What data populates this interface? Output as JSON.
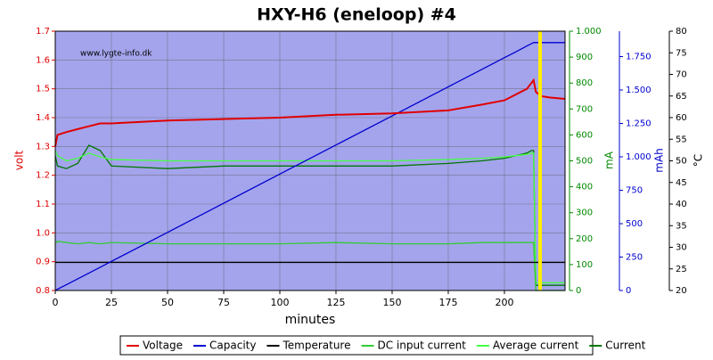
{
  "chart_data": {
    "type": "line",
    "title": "HXY-H6 (eneloop) #4",
    "watermark": "www.lygte-info.dk",
    "x_label": "minutes",
    "y_label": "volt",
    "y2_label": "mA",
    "y3_label": "mAh",
    "y4_label": "°C",
    "grid": true,
    "x": [
      0,
      1,
      5,
      10,
      15,
      20,
      25,
      50,
      75,
      100,
      125,
      150,
      175,
      190,
      200,
      205,
      210,
      212,
      213,
      214,
      216,
      220,
      227
    ],
    "xlim": [
      0,
      227
    ],
    "xticks": [
      0,
      25,
      50,
      75,
      100,
      125,
      150,
      175,
      200
    ],
    "ylim": [
      0.8,
      1.7
    ],
    "yticks": [
      {
        "value": 0.8,
        "label": "0.8"
      },
      0.9,
      {
        "value": 1,
        "label": "1.0"
      },
      1.1,
      1.2,
      1.3,
      1.4,
      1.5,
      1.6,
      1.7
    ],
    "y2lim": [
      0,
      1000
    ],
    "y2ticks": [
      0,
      100,
      200,
      300,
      400,
      500,
      600,
      700,
      800,
      900,
      {
        "value": 1000,
        "label": "1.000"
      }
    ],
    "y3lim": [
      0,
      1940
    ],
    "y3ticks": [
      0,
      250,
      500,
      750,
      {
        "value": 1000,
        "label": "1.000"
      },
      {
        "value": 1250,
        "label": "1.250"
      },
      {
        "value": 1500,
        "label": "1.500"
      },
      {
        "value": 1750,
        "label": "1.750"
      }
    ],
    "y4lim": [
      20,
      80
    ],
    "y4ticks": [
      20,
      25,
      30,
      35,
      40,
      45,
      50,
      55,
      60,
      65,
      70,
      75,
      80
    ],
    "series": [
      {
        "name": "Voltage",
        "color": "#e00000",
        "axis": "y",
        "values": [
          1.3,
          1.34,
          1.35,
          1.36,
          1.37,
          1.38,
          1.38,
          1.39,
          1.395,
          1.4,
          1.41,
          1.415,
          1.425,
          1.445,
          1.46,
          1.48,
          1.5,
          1.52,
          1.53,
          1.49,
          1.475,
          1.47,
          1.465
        ]
      },
      {
        "name": "Capacity",
        "color": "#0000d0",
        "axis": "y3",
        "values": [
          0,
          9,
          44,
          87,
          131,
          174,
          218,
          435,
          653,
          871,
          1089,
          1306,
          1524,
          1655,
          1742,
          1785,
          1829,
          1846,
          1855,
          1855,
          1855,
          1855,
          1855
        ]
      },
      {
        "name": "Temperature",
        "color": "#000000",
        "axis": "y4",
        "values": [
          26.5,
          26.5,
          26.5,
          26.5,
          26.5,
          26.5,
          26.5,
          26.5,
          26.5,
          26.5,
          26.5,
          26.5,
          26.5,
          26.5,
          26.5,
          26.5,
          26.5,
          26.5,
          26.5,
          26.5,
          26.5,
          26.5,
          26.5
        ]
      },
      {
        "name": "DC input current",
        "color": "#33cc33",
        "axis": "y2",
        "values": [
          180,
          190,
          185,
          180,
          185,
          180,
          185,
          180,
          180,
          180,
          185,
          180,
          180,
          185,
          185,
          185,
          185,
          185,
          185,
          0,
          0,
          0,
          0
        ]
      },
      {
        "name": "Average current",
        "color": "#44ff44",
        "axis": "y2",
        "values": [
          540,
          520,
          500,
          510,
          530,
          515,
          505,
          500,
          500,
          500,
          500,
          500,
          505,
          510,
          515,
          520,
          525,
          530,
          530,
          30,
          30,
          30,
          30
        ]
      },
      {
        "name": "Current",
        "color": "#007700",
        "axis": "y2",
        "values": [
          520,
          480,
          470,
          490,
          560,
          540,
          480,
          470,
          480,
          480,
          480,
          480,
          490,
          500,
          510,
          520,
          530,
          540,
          540,
          20,
          20,
          20,
          20
        ]
      }
    ]
  }
}
